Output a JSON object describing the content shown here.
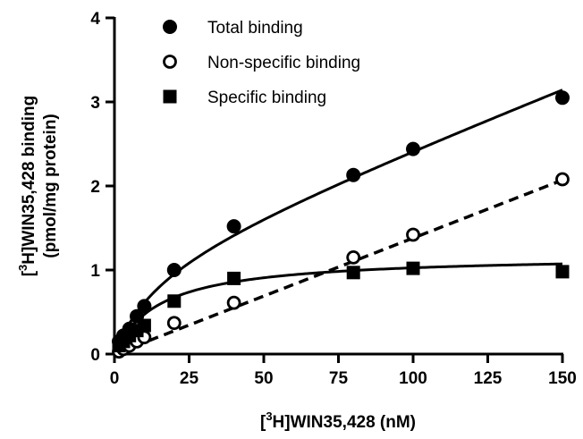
{
  "chart_data": {
    "type": "scatter",
    "xlabel": {
      "pre": "[",
      "sup": "3",
      "post": "H]WIN35,428 (nM)"
    },
    "ylabel": {
      "line1": {
        "pre": "[",
        "sup": "3",
        "post": "H]WIN35,428 binding"
      },
      "line2": "(pmol/mg protein)"
    },
    "xlim": [
      0,
      150
    ],
    "ylim": [
      0,
      4
    ],
    "xticks": [
      "0",
      "25",
      "50",
      "75",
      "100",
      "125",
      "150"
    ],
    "yticks": [
      "0",
      "1",
      "2",
      "3",
      "4"
    ],
    "legend_position": "top-left",
    "series": [
      {
        "name": "Total binding",
        "marker": "filled-circle",
        "line_style": "solid",
        "x": [
          1.5,
          3,
          5,
          7.5,
          10,
          20,
          40,
          80,
          100,
          150
        ],
        "y": [
          0.15,
          0.22,
          0.3,
          0.45,
          0.57,
          1.0,
          1.52,
          2.13,
          2.44,
          3.05
        ]
      },
      {
        "name": "Non-specific binding",
        "marker": "open-circle",
        "line_style": "dashed",
        "x": [
          1.5,
          3,
          5,
          7.5,
          10,
          20,
          40,
          80,
          100,
          150
        ],
        "y": [
          0.03,
          0.06,
          0.1,
          0.15,
          0.2,
          0.37,
          0.61,
          1.15,
          1.42,
          2.08
        ]
      },
      {
        "name": "Specific binding",
        "marker": "filled-square",
        "line_style": "solid",
        "x": [
          1.5,
          3,
          5,
          7.5,
          10,
          20,
          40,
          80,
          100,
          150
        ],
        "y": [
          0.1,
          0.15,
          0.22,
          0.28,
          0.34,
          0.63,
          0.9,
          0.97,
          1.02,
          0.98
        ]
      }
    ],
    "curves": {
      "total": {
        "type": "sum",
        "bmax": 1.18,
        "kd": 15,
        "ns_slope": 0.0138
      },
      "specific": {
        "type": "hyperbola",
        "bmax": 1.18,
        "kd": 15
      },
      "nonspecific": {
        "type": "linear",
        "slope": 0.0138
      }
    }
  }
}
